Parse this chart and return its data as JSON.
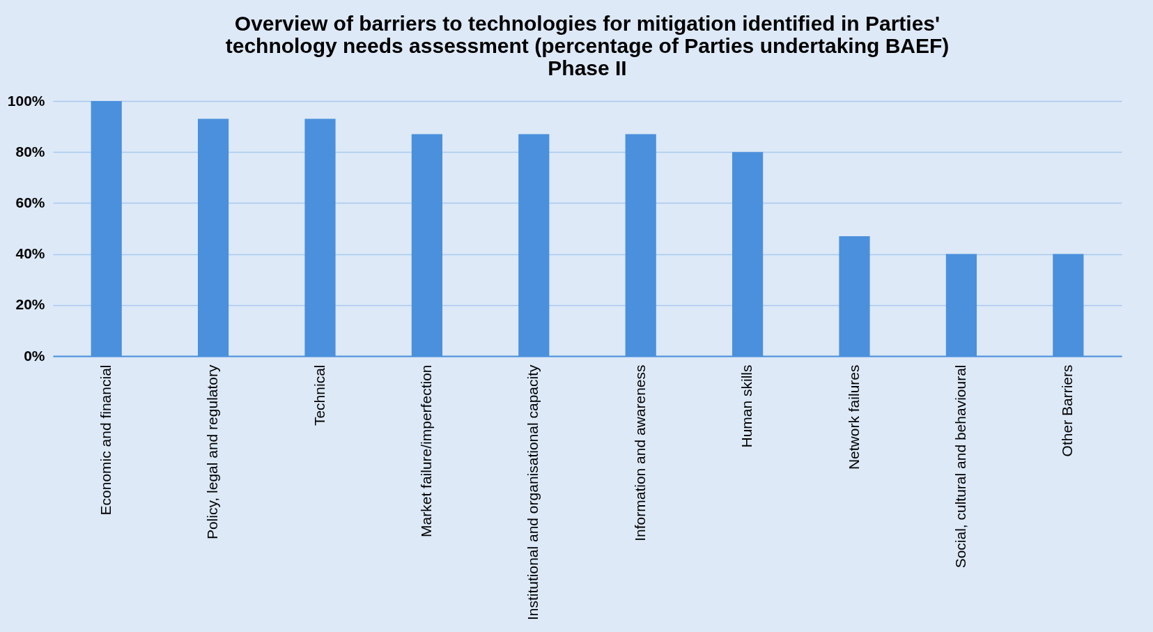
{
  "chart_data": {
    "type": "bar",
    "title": "Overview of barriers to technologies for mitigation identified in Parties'\ntechnology needs assessment (percentage of Parties undertaking BAEF)\nPhase II",
    "categories": [
      "Economic and financial",
      "Policy, legal and regulatory",
      "Technical",
      "Market failure/imperfection",
      "Institutional and organisational capacity",
      "Information and awareness",
      "Human skills",
      "Network failures",
      "Social, cultural and behavioural",
      "Other Barriers"
    ],
    "values": [
      100,
      93,
      93,
      87,
      87,
      87,
      80,
      47,
      40,
      40
    ],
    "color": "#4a90dc",
    "ylim": [
      0,
      100
    ],
    "yticks": [
      {
        "value": 0,
        "label": "0%"
      },
      {
        "value": 20,
        "label": "20%"
      },
      {
        "value": 40,
        "label": "40%"
      },
      {
        "value": 60,
        "label": "60%"
      },
      {
        "value": 80,
        "label": "80%"
      },
      {
        "value": 100,
        "label": "100%"
      }
    ],
    "grid": "y"
  }
}
